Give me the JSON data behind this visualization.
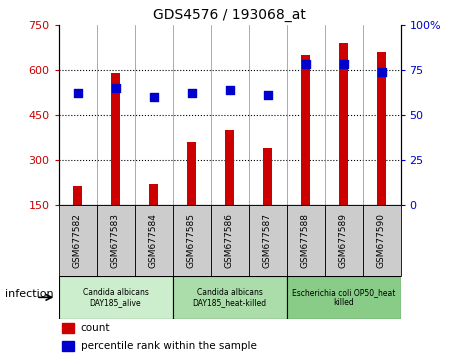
{
  "title": "GDS4576 / 193068_at",
  "samples": [
    "GSM677582",
    "GSM677583",
    "GSM677584",
    "GSM677585",
    "GSM677586",
    "GSM677587",
    "GSM677588",
    "GSM677589",
    "GSM677590"
  ],
  "counts": [
    215,
    590,
    220,
    360,
    400,
    340,
    650,
    690,
    660
  ],
  "percentile_ranks": [
    62,
    65,
    60,
    62,
    64,
    61,
    78,
    78,
    74
  ],
  "ylim_left": [
    150,
    750
  ],
  "ylim_right": [
    0,
    100
  ],
  "yticks_left": [
    150,
    300,
    450,
    600,
    750
  ],
  "yticks_right": [
    0,
    25,
    50,
    75,
    100
  ],
  "ytick_labels_right": [
    "0",
    "25",
    "50",
    "75",
    "100%"
  ],
  "bar_color": "#cc0000",
  "dot_color": "#0000cc",
  "groups": [
    {
      "label": "Candida albicans\nDAY185_alive",
      "start": 0,
      "end": 3,
      "color": "#cceecc"
    },
    {
      "label": "Candida albicans\nDAY185_heat-killed",
      "start": 3,
      "end": 6,
      "color": "#aaddaa"
    },
    {
      "label": "Escherichia coli OP50_heat\nkilled",
      "start": 6,
      "end": 9,
      "color": "#88cc88"
    }
  ],
  "xlabel_infection": "infection",
  "legend_count": "count",
  "legend_percentile": "percentile rank within the sample",
  "left_tick_color": "#cc0000",
  "right_tick_color": "#0000cc",
  "bar_width": 0.25,
  "dot_size": 40,
  "sample_box_color": "#cccccc",
  "gridline_values": [
    300,
    450,
    600
  ]
}
